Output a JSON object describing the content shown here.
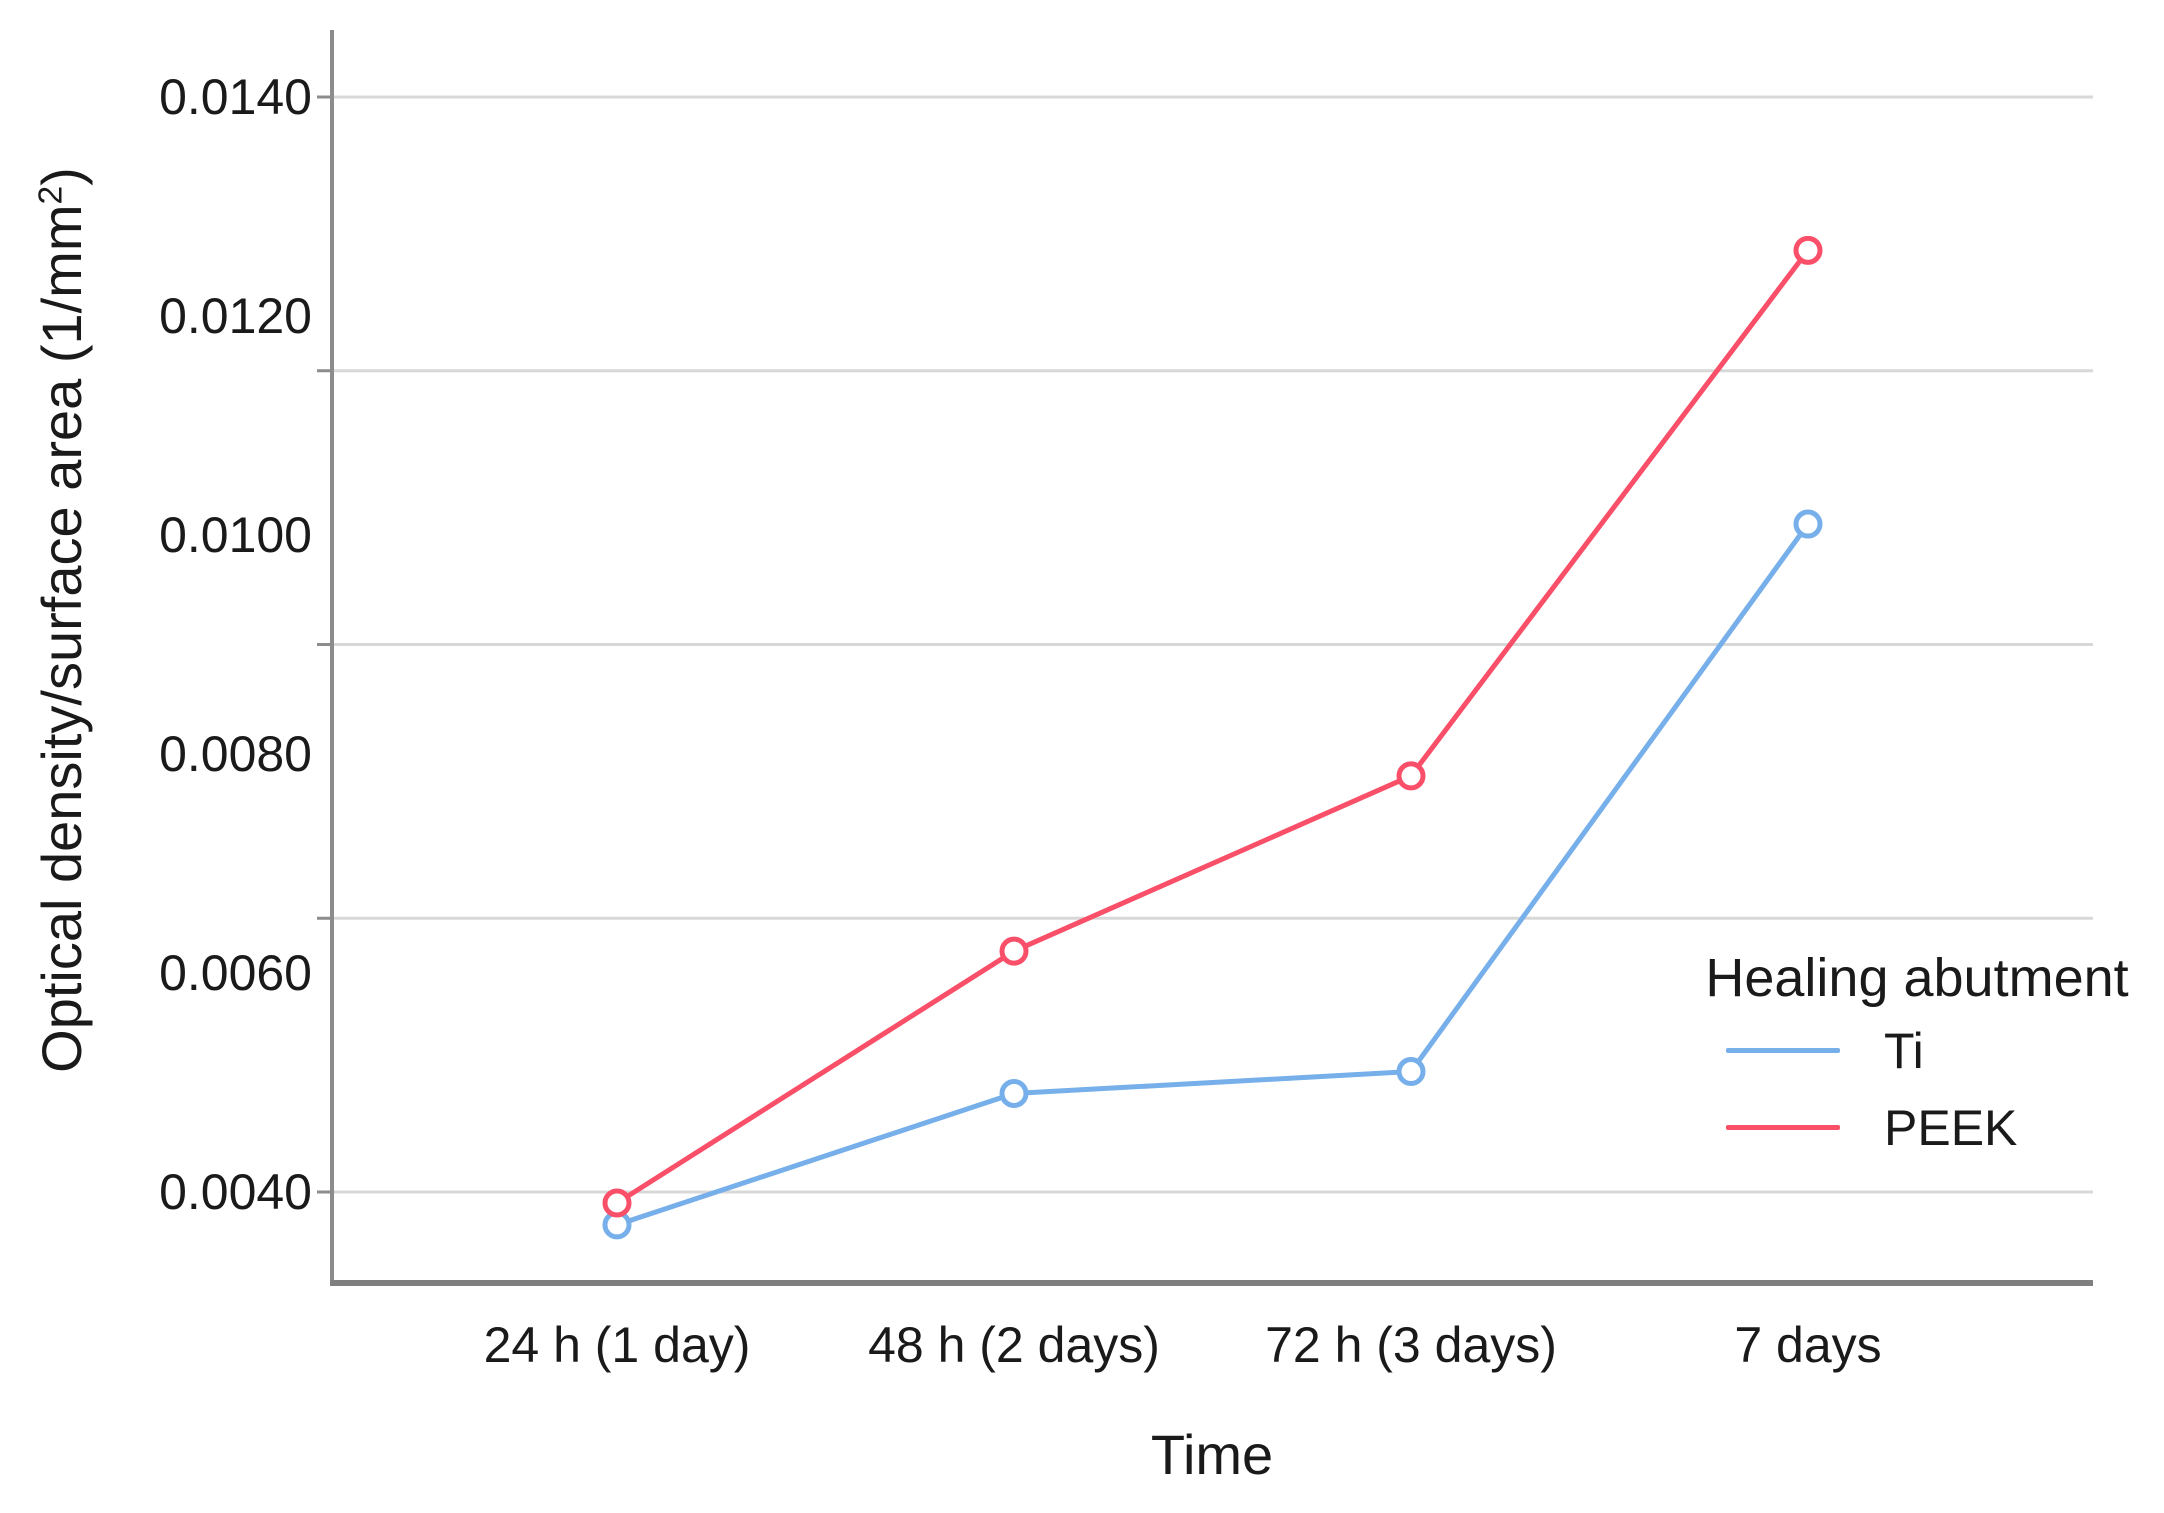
{
  "chart_data": {
    "type": "line",
    "title": "",
    "x_axis": {
      "label": "Time",
      "categories": [
        "24 h (1 day)",
        "48 h (2 days)",
        "72 h (3 days)",
        "7 days"
      ]
    },
    "y_axis": {
      "label_main": "Optical density/surface area (1/mm",
      "label_sup": "2",
      "label_end": ")",
      "tick_labels": [
        "0.0140",
        "0.0120",
        "0.0100",
        "0.0080",
        "0.0060",
        "0.0040"
      ],
      "tick_values": [
        0.014,
        0.012,
        0.01,
        0.008,
        0.006,
        0.004
      ],
      "grid_values": [
        0.014,
        0.0115,
        0.009,
        0.0065,
        0.004
      ],
      "ylim": [
        0.003169,
        0.014612
      ],
      "grid": true
    },
    "series": [
      {
        "name": "Ti",
        "color": "#76AFE9",
        "values": [
          0.0037,
          0.0049,
          0.0051,
          0.0101
        ]
      },
      {
        "name": "PEEK",
        "color": "#F94F68",
        "values": [
          0.0039,
          0.0062,
          0.0078,
          0.0126
        ]
      }
    ],
    "legend": {
      "title": "Healing abutment",
      "position": "right-inside"
    }
  },
  "colors": {
    "gridline": "#D8D8D8",
    "y_axis_line": "#8C8C8C",
    "x_axis_line": "#7F7F7F",
    "text": "#1a1a1a",
    "background": "#ffffff"
  }
}
